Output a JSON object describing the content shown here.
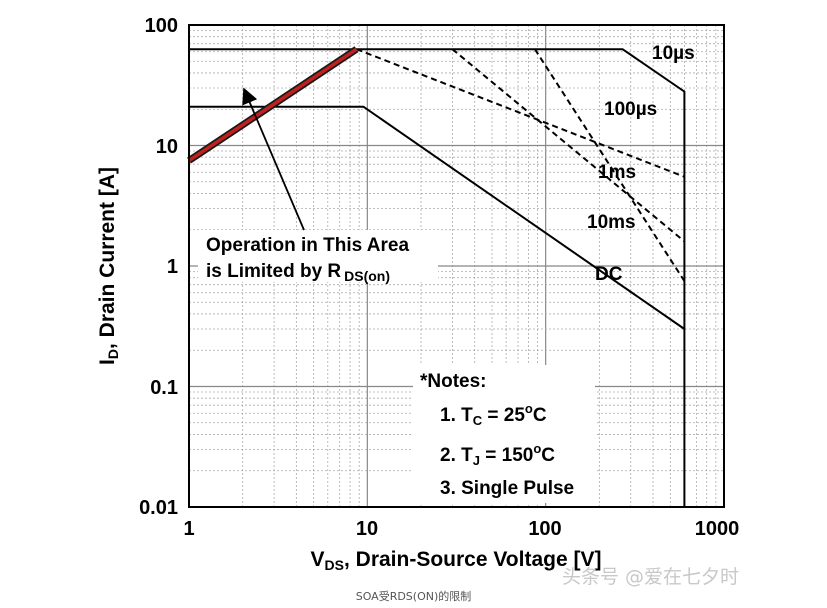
{
  "chart_data": {
    "type": "line",
    "title": "",
    "x_scale": "log",
    "y_scale": "log",
    "xlim": [
      1,
      1000
    ],
    "ylim": [
      0.01,
      100
    ],
    "grid": true,
    "xlabel_main": "V",
    "xlabel_sub": "DS",
    "xlabel_rest": ", Drain-Source Voltage [V]",
    "ylabel_main": "I",
    "ylabel_sub": "D",
    "ylabel_rest": ", Drain Current [A]",
    "x_ticks": [
      "1",
      "10",
      "100",
      "1000"
    ],
    "y_ticks": [
      "100",
      "10",
      "1",
      "0.1",
      "0.01"
    ],
    "series": [
      {
        "name": "10µs",
        "style": "solid",
        "x": [
          1,
          270,
          600,
          600
        ],
        "y": [
          63,
          63,
          28,
          0.01
        ]
      },
      {
        "name": "100µs",
        "style": "dashed",
        "x": [
          8.7,
          600
        ],
        "y": [
          63,
          5.5
        ]
      },
      {
        "name": "1ms",
        "style": "dashed",
        "x": [
          30,
          600
        ],
        "y": [
          63,
          1.6
        ]
      },
      {
        "name": "10ms",
        "style": "dashed",
        "x": [
          87,
          600
        ],
        "y": [
          63,
          0.75
        ]
      },
      {
        "name": "DC",
        "style": "solid",
        "x": [
          1,
          9.5,
          600
        ],
        "y": [
          21,
          21,
          0.3
        ]
      },
      {
        "name": "R_DS(on) limit",
        "style": "red",
        "x": [
          1,
          8.7
        ],
        "y": [
          7.5,
          63
        ]
      }
    ],
    "curve_labels": [
      "10µs",
      "100µs",
      "1ms",
      "10ms",
      "DC"
    ],
    "annotation": {
      "line1": "Operation in This Area",
      "line2": "is Limited by R",
      "line2_sub": "DS(on)"
    },
    "notes": {
      "title": "*Notes:",
      "n1_prefix": "1. T",
      "n1_sub": "C",
      "n1_value": " = 25",
      "n1_sup": "o",
      "n1_unit": "C",
      "n2_prefix": "2. T",
      "n2_sub": "J",
      "n2_value": " = 150",
      "n2_sup": "o",
      "n2_unit": "C",
      "n3": "3. Single Pulse"
    },
    "colors": {
      "rds_limit": "#c0201e",
      "curves": "#000000",
      "major_grid": "#888888",
      "minor_grid": "#aaaaaa"
    }
  },
  "watermark": "头条号 @爱在七夕时",
  "caption": "SOA受RDS(ON)的限制"
}
